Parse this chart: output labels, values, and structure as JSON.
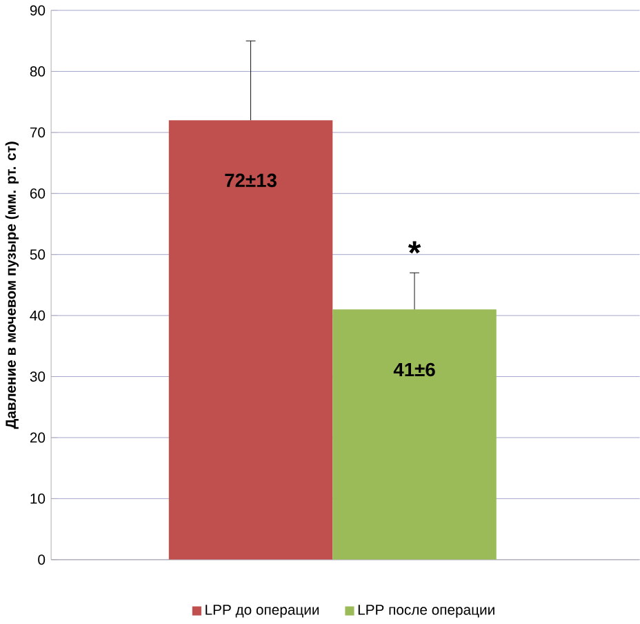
{
  "chart_data": {
    "type": "bar",
    "ylabel": "Давление в мочевом пузыре (мм. рт. ст)",
    "categories": [
      null
    ],
    "series": [
      {
        "name": "LPP до операции",
        "color": "#c0504d",
        "values": [
          72
        ],
        "errors": [
          13
        ],
        "value_labels": [
          "72±13"
        ]
      },
      {
        "name": "LPP после операции",
        "color": "#9bbb59",
        "values": [
          41
        ],
        "errors": [
          6
        ],
        "value_labels": [
          "41±6"
        ]
      }
    ],
    "annotations": [
      "*"
    ],
    "ylim": [
      0,
      90
    ],
    "yticks": [
      0,
      10,
      20,
      30,
      40,
      50,
      60,
      70,
      80,
      90
    ],
    "grid": "y",
    "legend": "bottom"
  }
}
